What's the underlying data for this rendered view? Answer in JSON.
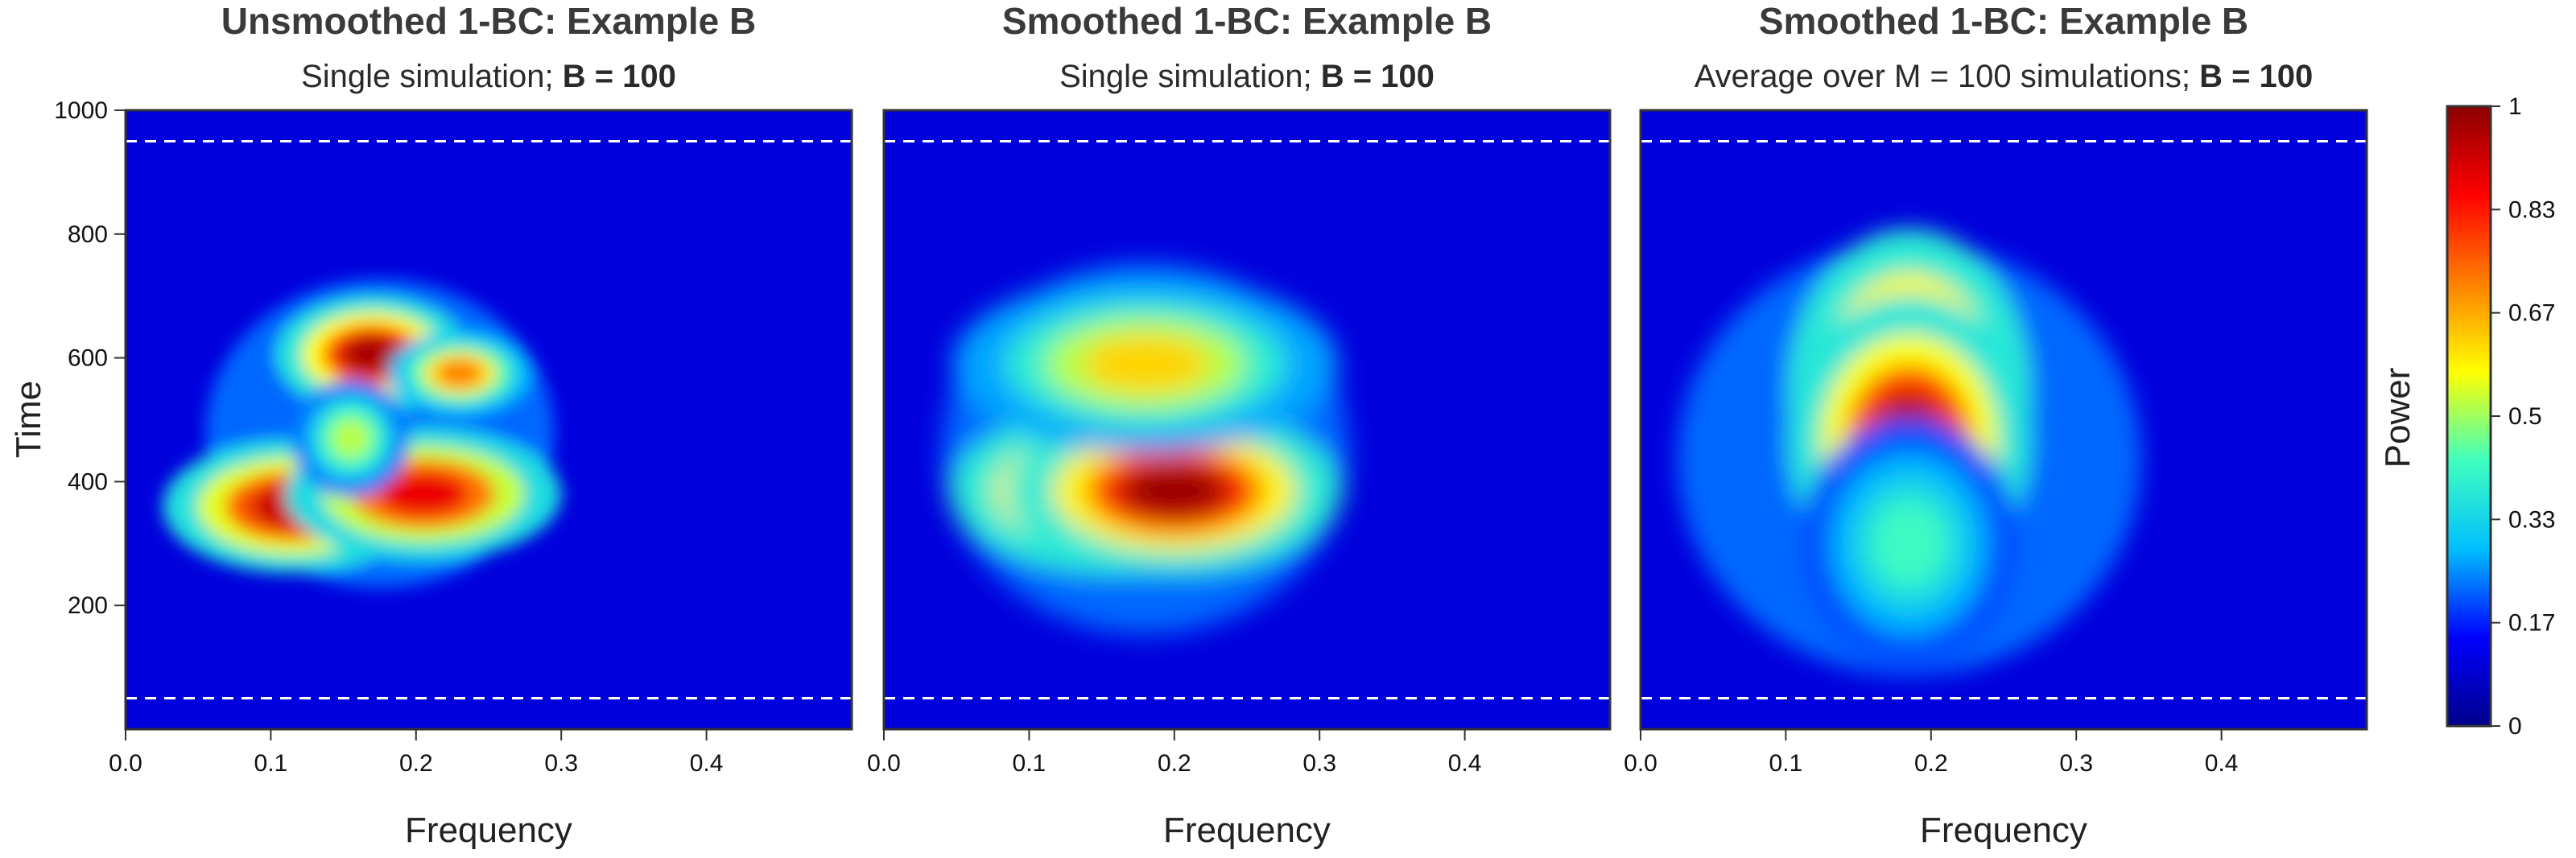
{
  "colorbar": {
    "label": "Power",
    "ticks": [
      "0",
      "0.17",
      "0.33",
      "0.5",
      "0.67",
      "0.83",
      "1"
    ],
    "colors": [
      "#00008b",
      "#0000ff",
      "#00bfff",
      "#40ffbf",
      "#ffff00",
      "#ff8000",
      "#ff0000",
      "#8b0000"
    ]
  },
  "reference_lines": {
    "times": [
      50,
      950
    ],
    "style": "dashed",
    "color": "#ffffff"
  },
  "chart_data": [
    {
      "type": "heatmap",
      "title": "Unsmoothed 1-BC: Example B",
      "subtitle_plain": "Single simulation; ",
      "subtitle_bold": "B = 100",
      "xlabel": "Frequency",
      "ylabel": "Time",
      "xlim": [
        0,
        0.5
      ],
      "ylim": [
        0,
        1000
      ],
      "xticks": [
        "0.0",
        "0.1",
        "0.2",
        "0.3",
        "0.4"
      ],
      "yticks": [
        "200",
        "400",
        "600",
        "800",
        "1000"
      ],
      "zlim": [
        0,
        1
      ],
      "background_power": 0.1,
      "hotspots": [
        {
          "freq": 0.115,
          "time": 360,
          "power": 0.92
        },
        {
          "freq": 0.205,
          "time": 380,
          "power": 0.88
        },
        {
          "freq": 0.17,
          "time": 605,
          "power": 0.96
        },
        {
          "freq": 0.23,
          "time": 575,
          "power": 0.72
        },
        {
          "freq": 0.155,
          "time": 470,
          "power": 0.52
        }
      ]
    },
    {
      "type": "heatmap",
      "title": "Smoothed 1-BC: Example B",
      "subtitle_plain": "Single simulation; ",
      "subtitle_bold": "B = 100",
      "xlabel": "Frequency",
      "ylabel": "",
      "xlim": [
        0,
        0.5
      ],
      "ylim": [
        0,
        1000
      ],
      "xticks": [
        "0.0",
        "0.1",
        "0.2",
        "0.3",
        "0.4"
      ],
      "yticks": [],
      "zlim": [
        0,
        1
      ],
      "background_power": 0.1,
      "hotspots": [
        {
          "freq": 0.16,
          "time": 385,
          "power": 0.98
        },
        {
          "freq": 0.2,
          "time": 385,
          "power": 0.98
        },
        {
          "freq": 0.18,
          "time": 590,
          "power": 0.62
        }
      ]
    },
    {
      "type": "heatmap",
      "title": "Smoothed 1-BC: Example B",
      "subtitle_plain": "Average over M = 100 simulations; ",
      "subtitle_bold": "B = 100",
      "xlabel": "Frequency",
      "ylabel": "",
      "xlim": [
        0,
        0.5
      ],
      "ylim": [
        0,
        1000
      ],
      "xticks": [
        "0.0",
        "0.1",
        "0.2",
        "0.3",
        "0.4"
      ],
      "yticks": [],
      "zlim": [
        0,
        1
      ],
      "background_power": 0.1,
      "hotspots": [
        {
          "freq": 0.185,
          "time": 545,
          "power": 0.97
        },
        {
          "freq": 0.185,
          "time": 465,
          "power": 0.95
        },
        {
          "freq": 0.185,
          "time": 300,
          "power": 0.42
        }
      ]
    }
  ]
}
